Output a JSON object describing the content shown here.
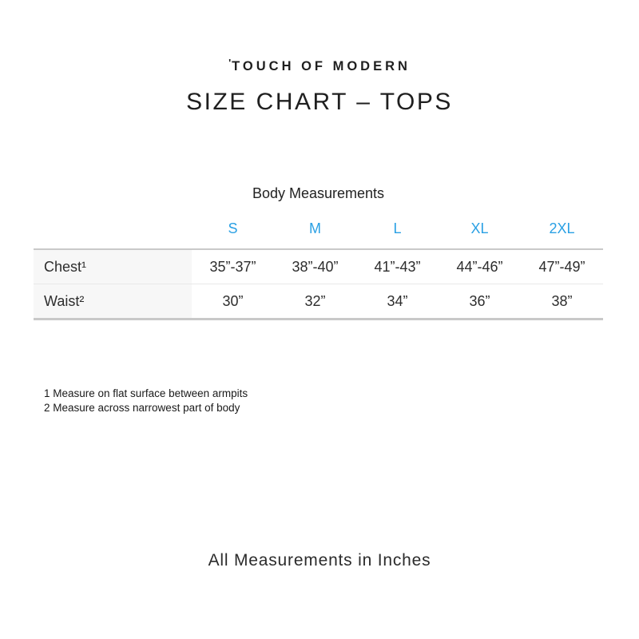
{
  "brand": {
    "logo_mark": "'",
    "logo_text": "TOUCH OF MODERN"
  },
  "title": "SIZE CHART – TOPS",
  "table": {
    "section_title": "Body Measurements",
    "accent_color": "#2aa0e4",
    "size_headers": [
      "S",
      "M",
      "L",
      "XL",
      "2XL"
    ],
    "rows": [
      {
        "label": "Chest¹",
        "values": [
          "35”-37”",
          "38”-40”",
          "41”-43”",
          "44”-46”",
          "47”-49”"
        ]
      },
      {
        "label": "Waist²",
        "values": [
          "30”",
          "32”",
          "34”",
          "36”",
          "38”"
        ]
      }
    ]
  },
  "footnotes": [
    "1 Measure on flat surface between armpits",
    "2 Measure across narrowest part of body"
  ],
  "footer_note": "All Measurements in Inches"
}
